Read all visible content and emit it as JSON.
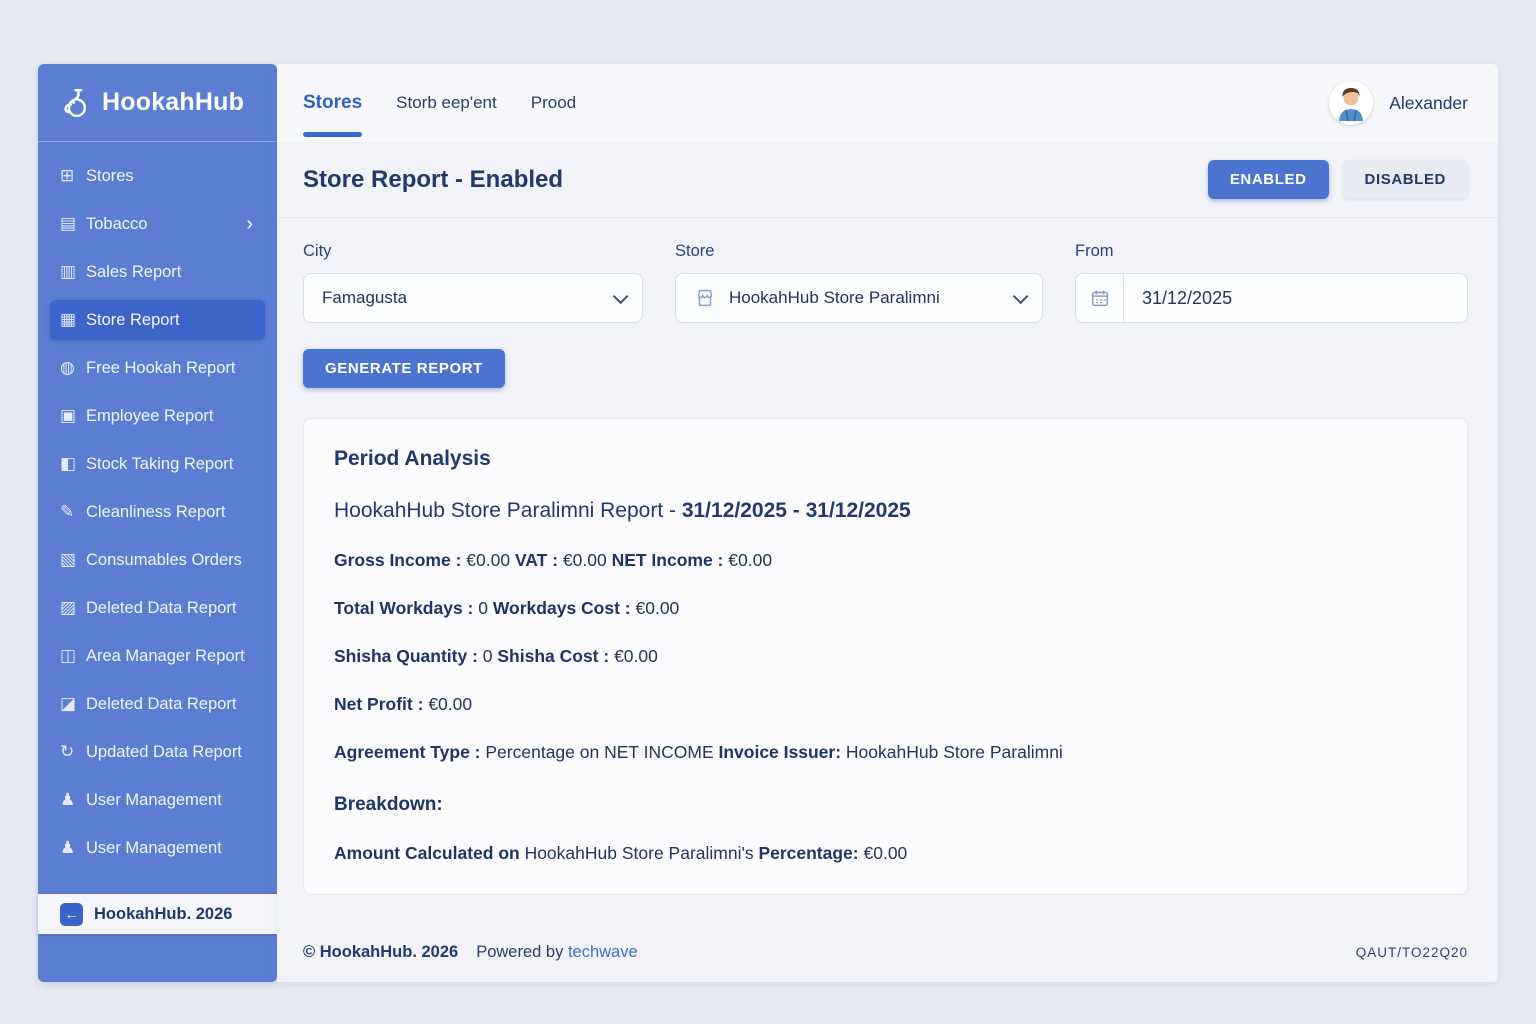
{
  "app": {
    "name": "HookahHub",
    "logo_icon": "hookah-icon"
  },
  "sidebar": {
    "items": [
      {
        "label": "Stores",
        "icon": "stores-icon",
        "glyph": "⊞",
        "active": false,
        "chevron": false
      },
      {
        "label": "Tobacco",
        "icon": "tobacco-icon",
        "glyph": "▤",
        "active": false,
        "chevron": true
      },
      {
        "label": "Sales Report",
        "icon": "sales-report-icon",
        "glyph": "▥",
        "active": false,
        "chevron": false
      },
      {
        "label": "Store Report",
        "icon": "store-report-icon",
        "glyph": "▦",
        "active": true,
        "chevron": false
      },
      {
        "label": "Free Hookah Report",
        "icon": "free-hookah-report-icon",
        "glyph": "◍",
        "active": false,
        "chevron": false
      },
      {
        "label": "Employee Report",
        "icon": "employee-report-icon",
        "glyph": "▣",
        "active": false,
        "chevron": false
      },
      {
        "label": "Stock Taking Report",
        "icon": "stock-taking-report-icon",
        "glyph": "◧",
        "active": false,
        "chevron": false
      },
      {
        "label": "Cleanliness Report",
        "icon": "cleanliness-report-icon",
        "glyph": "✎",
        "active": false,
        "chevron": false
      },
      {
        "label": "Consumables Orders",
        "icon": "consumables-orders-icon",
        "glyph": "▧",
        "active": false,
        "chevron": false
      },
      {
        "label": "Deleted Data Report",
        "icon": "deleted-data-report-icon",
        "glyph": "▨",
        "active": false,
        "chevron": false
      },
      {
        "label": "Area Manager Report",
        "icon": "area-manager-report-icon",
        "glyph": "◫",
        "active": false,
        "chevron": false
      },
      {
        "label": "Deleted Data Report",
        "icon": "deleted-data-report-icon",
        "glyph": "◪",
        "active": false,
        "chevron": false
      },
      {
        "label": "Updated Data Report",
        "icon": "updated-data-report-icon",
        "glyph": "↻",
        "active": false,
        "chevron": false
      },
      {
        "label": "User Management",
        "icon": "user-management-icon",
        "glyph": "♟",
        "active": false,
        "chevron": false
      },
      {
        "label": "User Management",
        "icon": "users-management-icon",
        "glyph": "♟",
        "active": false,
        "chevron": false
      }
    ],
    "brand": {
      "label": "HookahHub. 2026",
      "icon": "logout-icon",
      "glyph": "←"
    }
  },
  "topnav": {
    "tabs": [
      {
        "label": "Stores",
        "active": true
      },
      {
        "label": "Storb eep'ent",
        "active": false
      },
      {
        "label": "Prood",
        "active": false
      }
    ],
    "user": {
      "name": "Alexander",
      "avatar_icon": "user-avatar"
    }
  },
  "header": {
    "title": "Store Report - Enabled",
    "enabled_button": "ENABLED",
    "disabled_button": "DISABLED"
  },
  "filters": {
    "city": {
      "label": "City",
      "value": "Famagusta"
    },
    "store": {
      "label": "Store",
      "value": "HookahHub Store Paralimni",
      "icon": "storefront-icon"
    },
    "from": {
      "label": "From",
      "value": "31/12/2025",
      "icon": "calendar-icon"
    },
    "generate_button": "GENERATE REPORT"
  },
  "analysis": {
    "title": "Period Analysis",
    "report_line": [
      {
        "t": "HookahHub Store Paralimni Report - ",
        "b": false
      },
      {
        "t": "31/12/2025 - 31/12/2025",
        "b": true
      }
    ],
    "lines": [
      {
        "type": "data",
        "segments": [
          {
            "t": "Gross Income :",
            "b": true
          },
          {
            "t": " €0.00 ",
            "b": false
          },
          {
            "t": "VAT :",
            "b": true
          },
          {
            "t": " €0.00 ",
            "b": false
          },
          {
            "t": "NET Income :",
            "b": true
          },
          {
            "t": " €0.00",
            "b": false
          }
        ]
      },
      {
        "type": "data",
        "segments": [
          {
            "t": "Total Workdays :",
            "b": true
          },
          {
            "t": " 0 ",
            "b": false
          },
          {
            "t": "Workdays Cost :",
            "b": true
          },
          {
            "t": " €0.00",
            "b": false
          }
        ]
      },
      {
        "type": "data",
        "segments": [
          {
            "t": "Shisha Quantity :",
            "b": true
          },
          {
            "t": " 0 ",
            "b": false
          },
          {
            "t": "Shisha Cost :",
            "b": true
          },
          {
            "t": " €0.00",
            "b": false
          }
        ]
      },
      {
        "type": "data",
        "segments": [
          {
            "t": "Net Profit :",
            "b": true
          },
          {
            "t": " €0.00",
            "b": false
          }
        ]
      },
      {
        "type": "data",
        "segments": [
          {
            "t": "Agreement Type :",
            "b": true
          },
          {
            "t": " Percentage on NET INCOME ",
            "b": false
          },
          {
            "t": "Invoice Issuer:",
            "b": true
          },
          {
            "t": " HookahHub Store Paralimni",
            "b": false
          }
        ]
      },
      {
        "type": "heading",
        "segments": [
          {
            "t": "Breakdown:",
            "b": true
          }
        ]
      },
      {
        "type": "data",
        "segments": [
          {
            "t": "Amount Calculated on",
            "b": true
          },
          {
            "t": " HookahHub Store Paralimni's ",
            "b": false
          },
          {
            "t": "Percentage:",
            "b": true
          },
          {
            "t": " €0.00",
            "b": false
          }
        ]
      }
    ]
  },
  "footer": {
    "copyright": "© HookahHub. 2026",
    "powered_prefix": "Powered by",
    "powered_link": "techwave",
    "version": "QAUT/TO22Q20"
  },
  "colors": {
    "sidebar": "#5b7ed2",
    "sidebar_active": "#3d65c9",
    "accent": "#4a74d0",
    "tab_active": "#2e61c8",
    "navy_text": "#1e3a6f",
    "page_bg": "#e8eaf3",
    "panel_bg": "#f1f3f8"
  }
}
